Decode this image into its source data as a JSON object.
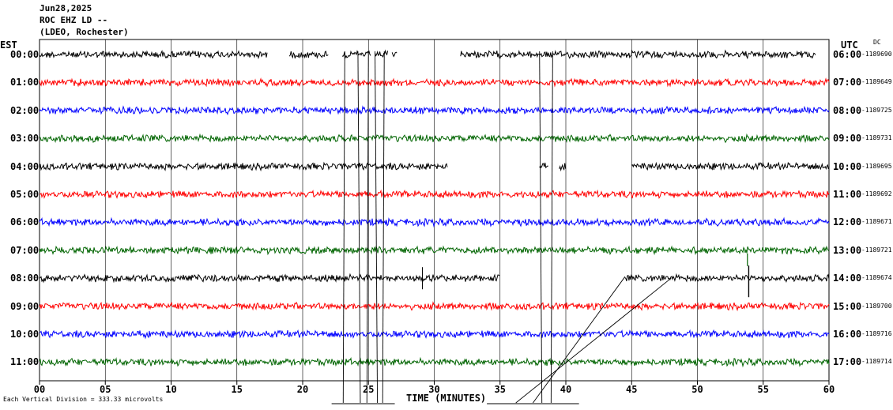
{
  "header": {
    "date": "Jun28,2025",
    "station": "ROC EHZ LD --",
    "network": "(LDEO, Rochester)"
  },
  "timezones": {
    "left": "EST",
    "right": "UTC",
    "dc_header": "DC"
  },
  "footer": {
    "xlabel": "TIME (MINUTES)",
    "scale_note": "Each Vertical Division =  333.33 microvolts"
  },
  "colors": {
    "trace_cycle": [
      "#000000",
      "#ff0000",
      "#0000ff",
      "#006400"
    ]
  },
  "chart_data": {
    "type": "line",
    "title": "ROC EHZ LD --",
    "xlabel": "TIME (MINUTES)",
    "xlim": [
      0,
      60
    ],
    "x_ticks": [
      "00",
      "05",
      "10",
      "15",
      "20",
      "25",
      "30",
      "35",
      "40",
      "45",
      "50",
      "55",
      "60"
    ],
    "grid": true,
    "rows": [
      {
        "est": "00:00",
        "utc": "06:00",
        "dc": "-1189690",
        "color": "#000000",
        "data_ranges": [
          [
            0,
            17.3
          ],
          [
            19,
            22
          ],
          [
            23,
            25.2
          ],
          [
            25.5,
            26.5
          ],
          [
            26.8,
            27.2
          ],
          [
            32,
            59
          ]
        ]
      },
      {
        "est": "01:00",
        "utc": "07:00",
        "dc": "-1189649",
        "color": "#ff0000",
        "data_ranges": [
          [
            0,
            60
          ]
        ]
      },
      {
        "est": "02:00",
        "utc": "08:00",
        "dc": "-1189725",
        "color": "#0000ff",
        "data_ranges": [
          [
            0,
            60
          ]
        ]
      },
      {
        "est": "03:00",
        "utc": "09:00",
        "dc": "-1189731",
        "color": "#006400",
        "data_ranges": [
          [
            0,
            60
          ]
        ]
      },
      {
        "est": "04:00",
        "utc": "10:00",
        "dc": "-1189695",
        "color": "#000000",
        "data_ranges": [
          [
            0,
            31
          ],
          [
            38,
            38.7
          ],
          [
            39.5,
            40
          ],
          [
            45,
            60
          ]
        ]
      },
      {
        "est": "05:00",
        "utc": "11:00",
        "dc": "-1189692",
        "color": "#ff0000",
        "data_ranges": [
          [
            0,
            60
          ]
        ]
      },
      {
        "est": "06:00",
        "utc": "12:00",
        "dc": "-1189671",
        "color": "#0000ff",
        "data_ranges": [
          [
            0,
            60
          ]
        ]
      },
      {
        "est": "07:00",
        "utc": "13:00",
        "dc": "-1189721",
        "color": "#006400",
        "data_ranges": [
          [
            0,
            60
          ]
        ]
      },
      {
        "est": "08:00",
        "utc": "14:00",
        "dc": "-1189674",
        "color": "#000000",
        "data_ranges": [
          [
            0,
            35
          ],
          [
            44.5,
            60
          ]
        ]
      },
      {
        "est": "09:00",
        "utc": "15:00",
        "dc": "-1189700",
        "color": "#ff0000",
        "data_ranges": [
          [
            0,
            60
          ]
        ]
      },
      {
        "est": "10:00",
        "utc": "16:00",
        "dc": "-1189716",
        "color": "#0000ff",
        "data_ranges": [
          [
            0,
            60
          ]
        ]
      },
      {
        "est": "11:00",
        "utc": "17:00",
        "dc": "-1189714",
        "color": "#006400",
        "data_ranges": [
          [
            0,
            60
          ]
        ]
      }
    ]
  }
}
